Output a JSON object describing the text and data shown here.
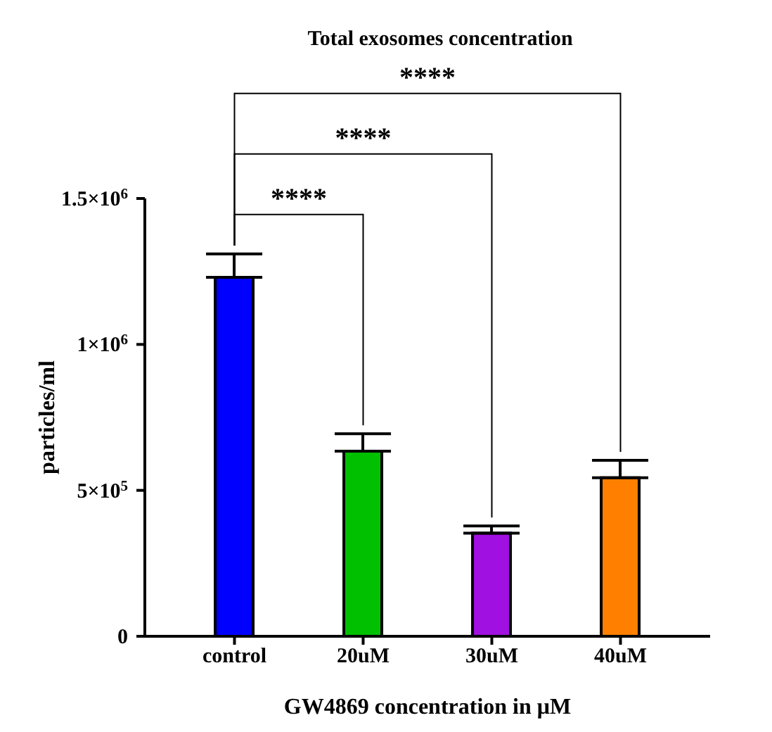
{
  "chart_data": {
    "type": "bar",
    "title": "Total exosomes concentration",
    "xlabel": "GW4869 concentration in μM",
    "ylabel": "particles/ml",
    "categories": [
      "control",
      "20uM",
      "30uM",
      "40uM"
    ],
    "values": [
      1230000,
      634000,
      353000,
      543000
    ],
    "errors": [
      80000,
      60000,
      25000,
      60000
    ],
    "colors": [
      "#0000ff",
      "#00c000",
      "#a010e0",
      "#ff8000"
    ],
    "ylim": [
      0,
      1500000
    ],
    "yticks": [
      {
        "value": 0,
        "label": "0"
      },
      {
        "value": 500000,
        "label": "5×10$^{5}$"
      },
      {
        "value": 1000000,
        "label": "1×10$^{6}$"
      },
      {
        "value": 1500000,
        "label": "1.5×10$^{6}$"
      }
    ],
    "annotations": [
      "****",
      "****",
      "****"
    ],
    "grid": false
  }
}
